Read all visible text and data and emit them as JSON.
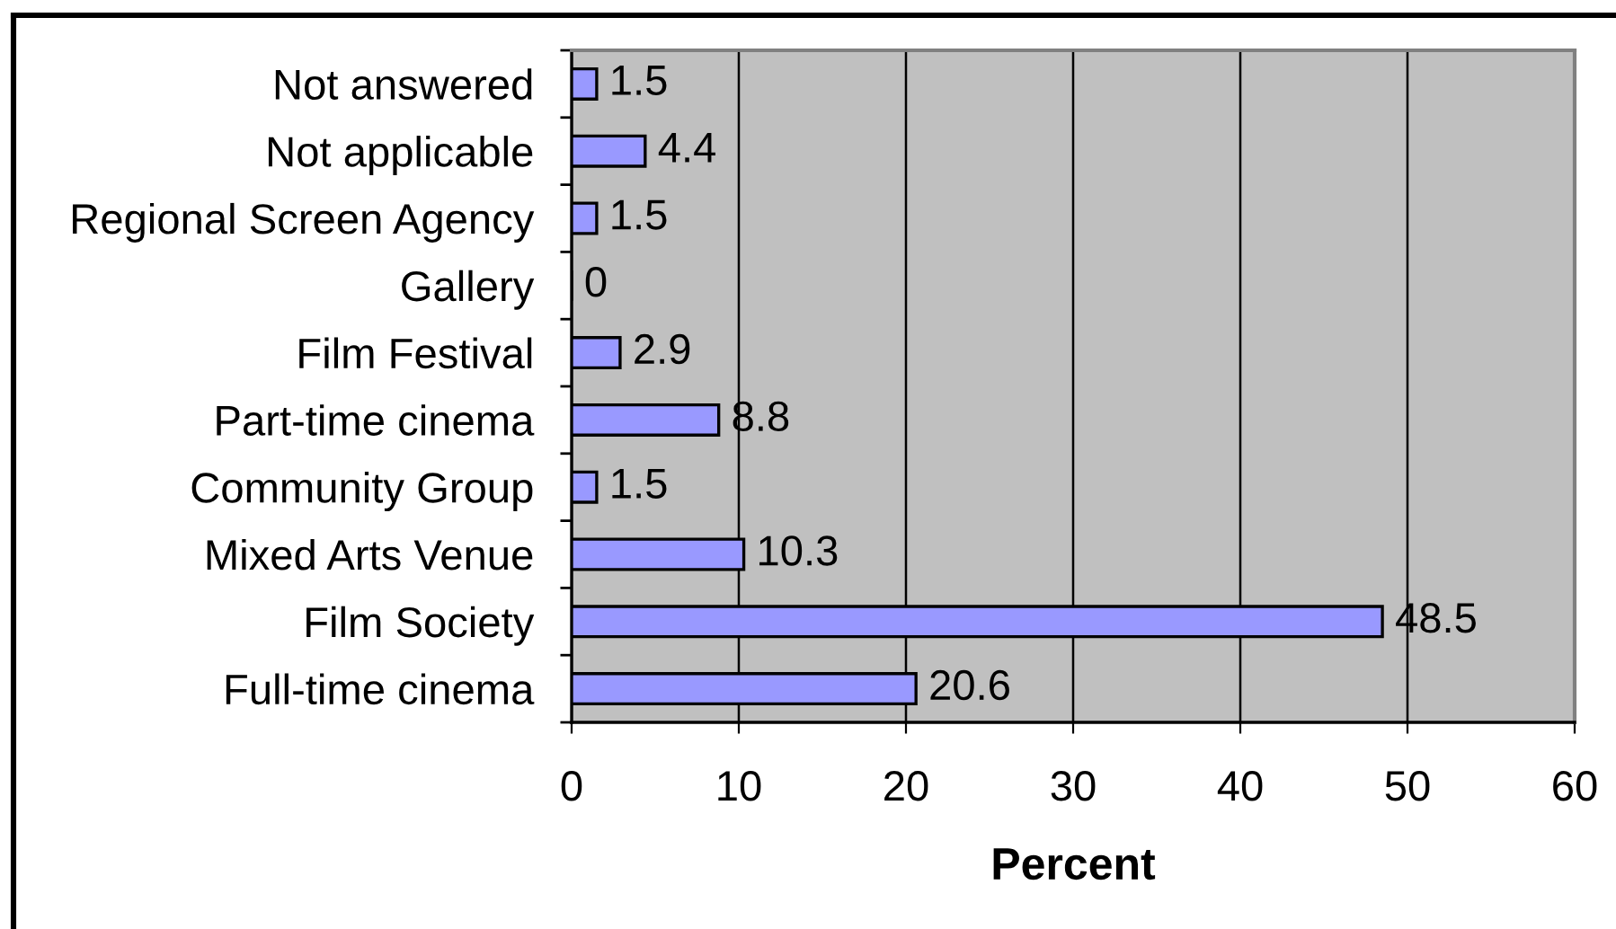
{
  "chart_data": {
    "type": "bar",
    "orientation": "horizontal",
    "categories": [
      "Not answered",
      "Not applicable",
      "Regional Screen Agency",
      "Gallery",
      "Film Festival",
      "Part-time cinema",
      "Community Group",
      "Mixed Arts Venue",
      "Film Society",
      "Full-time cinema"
    ],
    "values": [
      1.5,
      4.4,
      1.5,
      0,
      2.9,
      8.8,
      1.5,
      10.3,
      48.5,
      20.6
    ],
    "color": "#9999ff",
    "xlabel": "Percent",
    "xlim": [
      0,
      60
    ],
    "xticks": [
      0,
      10,
      20,
      30,
      40,
      50,
      60
    ],
    "grid": "x",
    "data_labels": true,
    "legend": false
  }
}
